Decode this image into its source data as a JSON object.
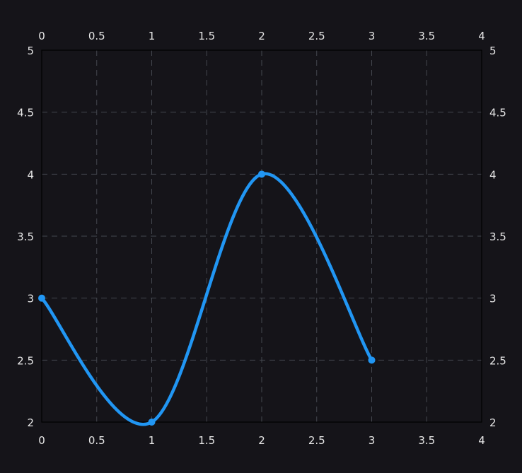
{
  "colors": {
    "background": "#151419",
    "grid": "#44474f",
    "axis": "#000000",
    "series": "#2196f3",
    "text": "#e6e6e6"
  },
  "chart_data": {
    "type": "line",
    "title": "",
    "xlabel": "",
    "ylabel": "",
    "xlim": [
      0,
      4
    ],
    "ylim": [
      2,
      5
    ],
    "x_ticks": [
      "0",
      "0.5",
      "1",
      "1.5",
      "2",
      "2.5",
      "3",
      "3.5",
      "4"
    ],
    "y_ticks": [
      "2",
      "2.5",
      "3",
      "3.5",
      "4",
      "4.5",
      "5"
    ],
    "grid": true,
    "grid_style": "dashed",
    "mirrored_axes": [
      "top",
      "right"
    ],
    "smooth": true,
    "series": [
      {
        "x": [
          0,
          1,
          2,
          3
        ],
        "y": [
          3,
          2,
          4,
          2.5
        ],
        "markers": true
      }
    ]
  }
}
